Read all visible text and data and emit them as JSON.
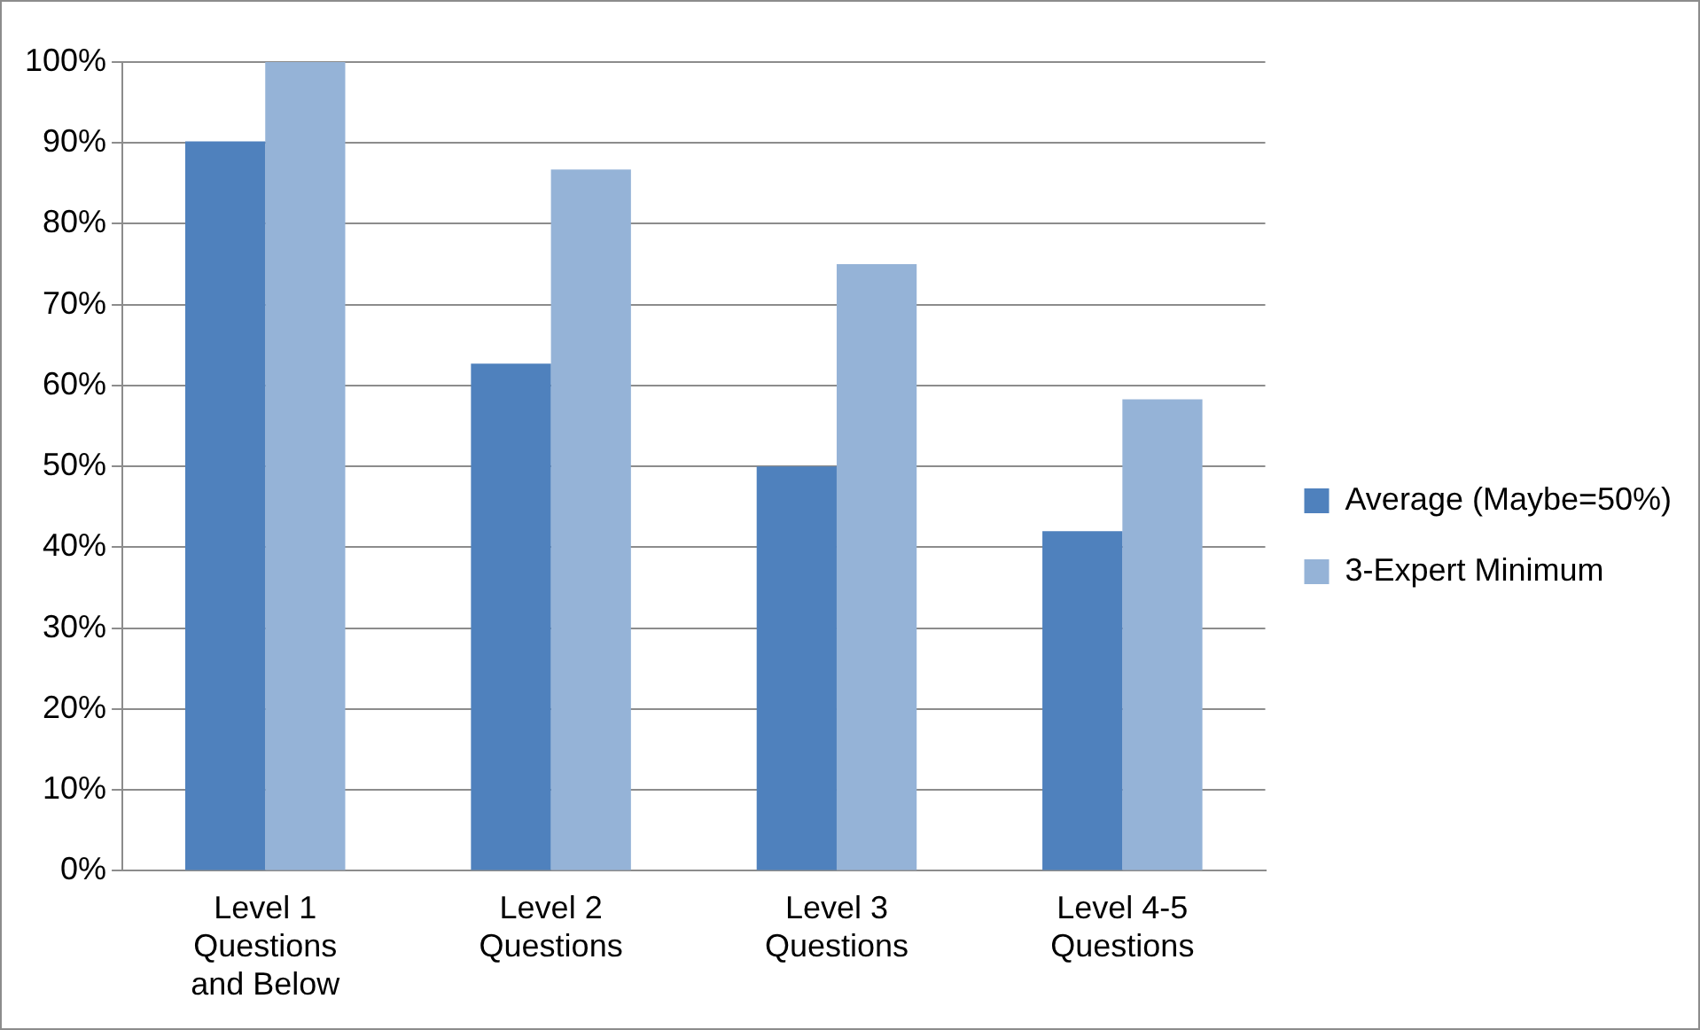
{
  "chart_data": {
    "type": "bar",
    "categories": [
      "Level 1 Questions and Below",
      "Level 2 Questions",
      "Level 3 Questions",
      "Level 4-5 Questions"
    ],
    "series": [
      {
        "name": "Average (Maybe=50%)",
        "color": "#4f81bd",
        "values": [
          90.2,
          62.7,
          50,
          42
        ]
      },
      {
        "name": "3-Expert Minimum",
        "color": "#95b3d7",
        "values": [
          100,
          86.7,
          75,
          58.3
        ]
      }
    ],
    "ylim": [
      0,
      100
    ],
    "yticks": [
      {
        "value": 0,
        "label": "0%"
      },
      {
        "value": 10,
        "label": "10%"
      },
      {
        "value": 20,
        "label": "20%"
      },
      {
        "value": 30,
        "label": "30%"
      },
      {
        "value": 40,
        "label": "40%"
      },
      {
        "value": 50,
        "label": "50%"
      },
      {
        "value": 60,
        "label": "60%"
      },
      {
        "value": 70,
        "label": "70%"
      },
      {
        "value": 80,
        "label": "80%"
      },
      {
        "value": 90,
        "label": "90%"
      },
      {
        "value": 100,
        "label": "100%"
      }
    ],
    "grid": "y",
    "legend": "right"
  }
}
